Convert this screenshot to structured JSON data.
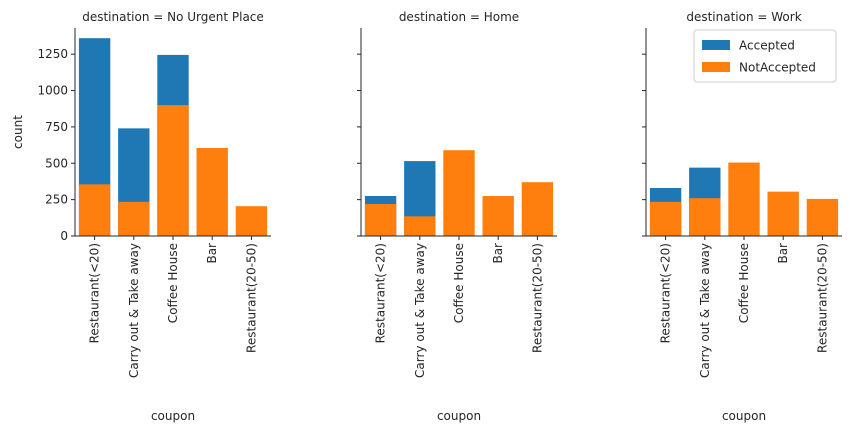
{
  "chart_data": {
    "type": "bar",
    "stacked": "overlay",
    "ylabel": "count",
    "xlabel": "coupon",
    "ylim": [
      0,
      1430
    ],
    "yticks": [
      0,
      250,
      500,
      750,
      1000,
      1250
    ],
    "legend": {
      "placement": "top-right",
      "entries": [
        {
          "name": "Accepted",
          "color": "#1f77b4"
        },
        {
          "name": "NotAccepted",
          "color": "#ff7f0e"
        }
      ]
    },
    "categories": [
      "Restaurant(<20)",
      "Carry out & Take away",
      "Coffee House",
      "Bar",
      "Restaurant(20-50)"
    ],
    "facets": [
      {
        "title": "destination = No Urgent Place",
        "series": [
          {
            "name": "Accepted",
            "values": [
              1360,
              740,
              1245,
              null,
              null
            ]
          },
          {
            "name": "NotAccepted",
            "values": [
              355,
              235,
              900,
              605,
              205
            ]
          }
        ]
      },
      {
        "title": "destination = Home",
        "series": [
          {
            "name": "Accepted",
            "values": [
              275,
              515,
              null,
              null,
              null
            ]
          },
          {
            "name": "NotAccepted",
            "values": [
              220,
              135,
              590,
              275,
              370
            ]
          }
        ]
      },
      {
        "title": "destination = Work",
        "series": [
          {
            "name": "Accepted",
            "values": [
              330,
              470,
              null,
              null,
              null
            ]
          },
          {
            "name": "NotAccepted",
            "values": [
              235,
              260,
              505,
              305,
              255
            ]
          }
        ]
      }
    ]
  }
}
